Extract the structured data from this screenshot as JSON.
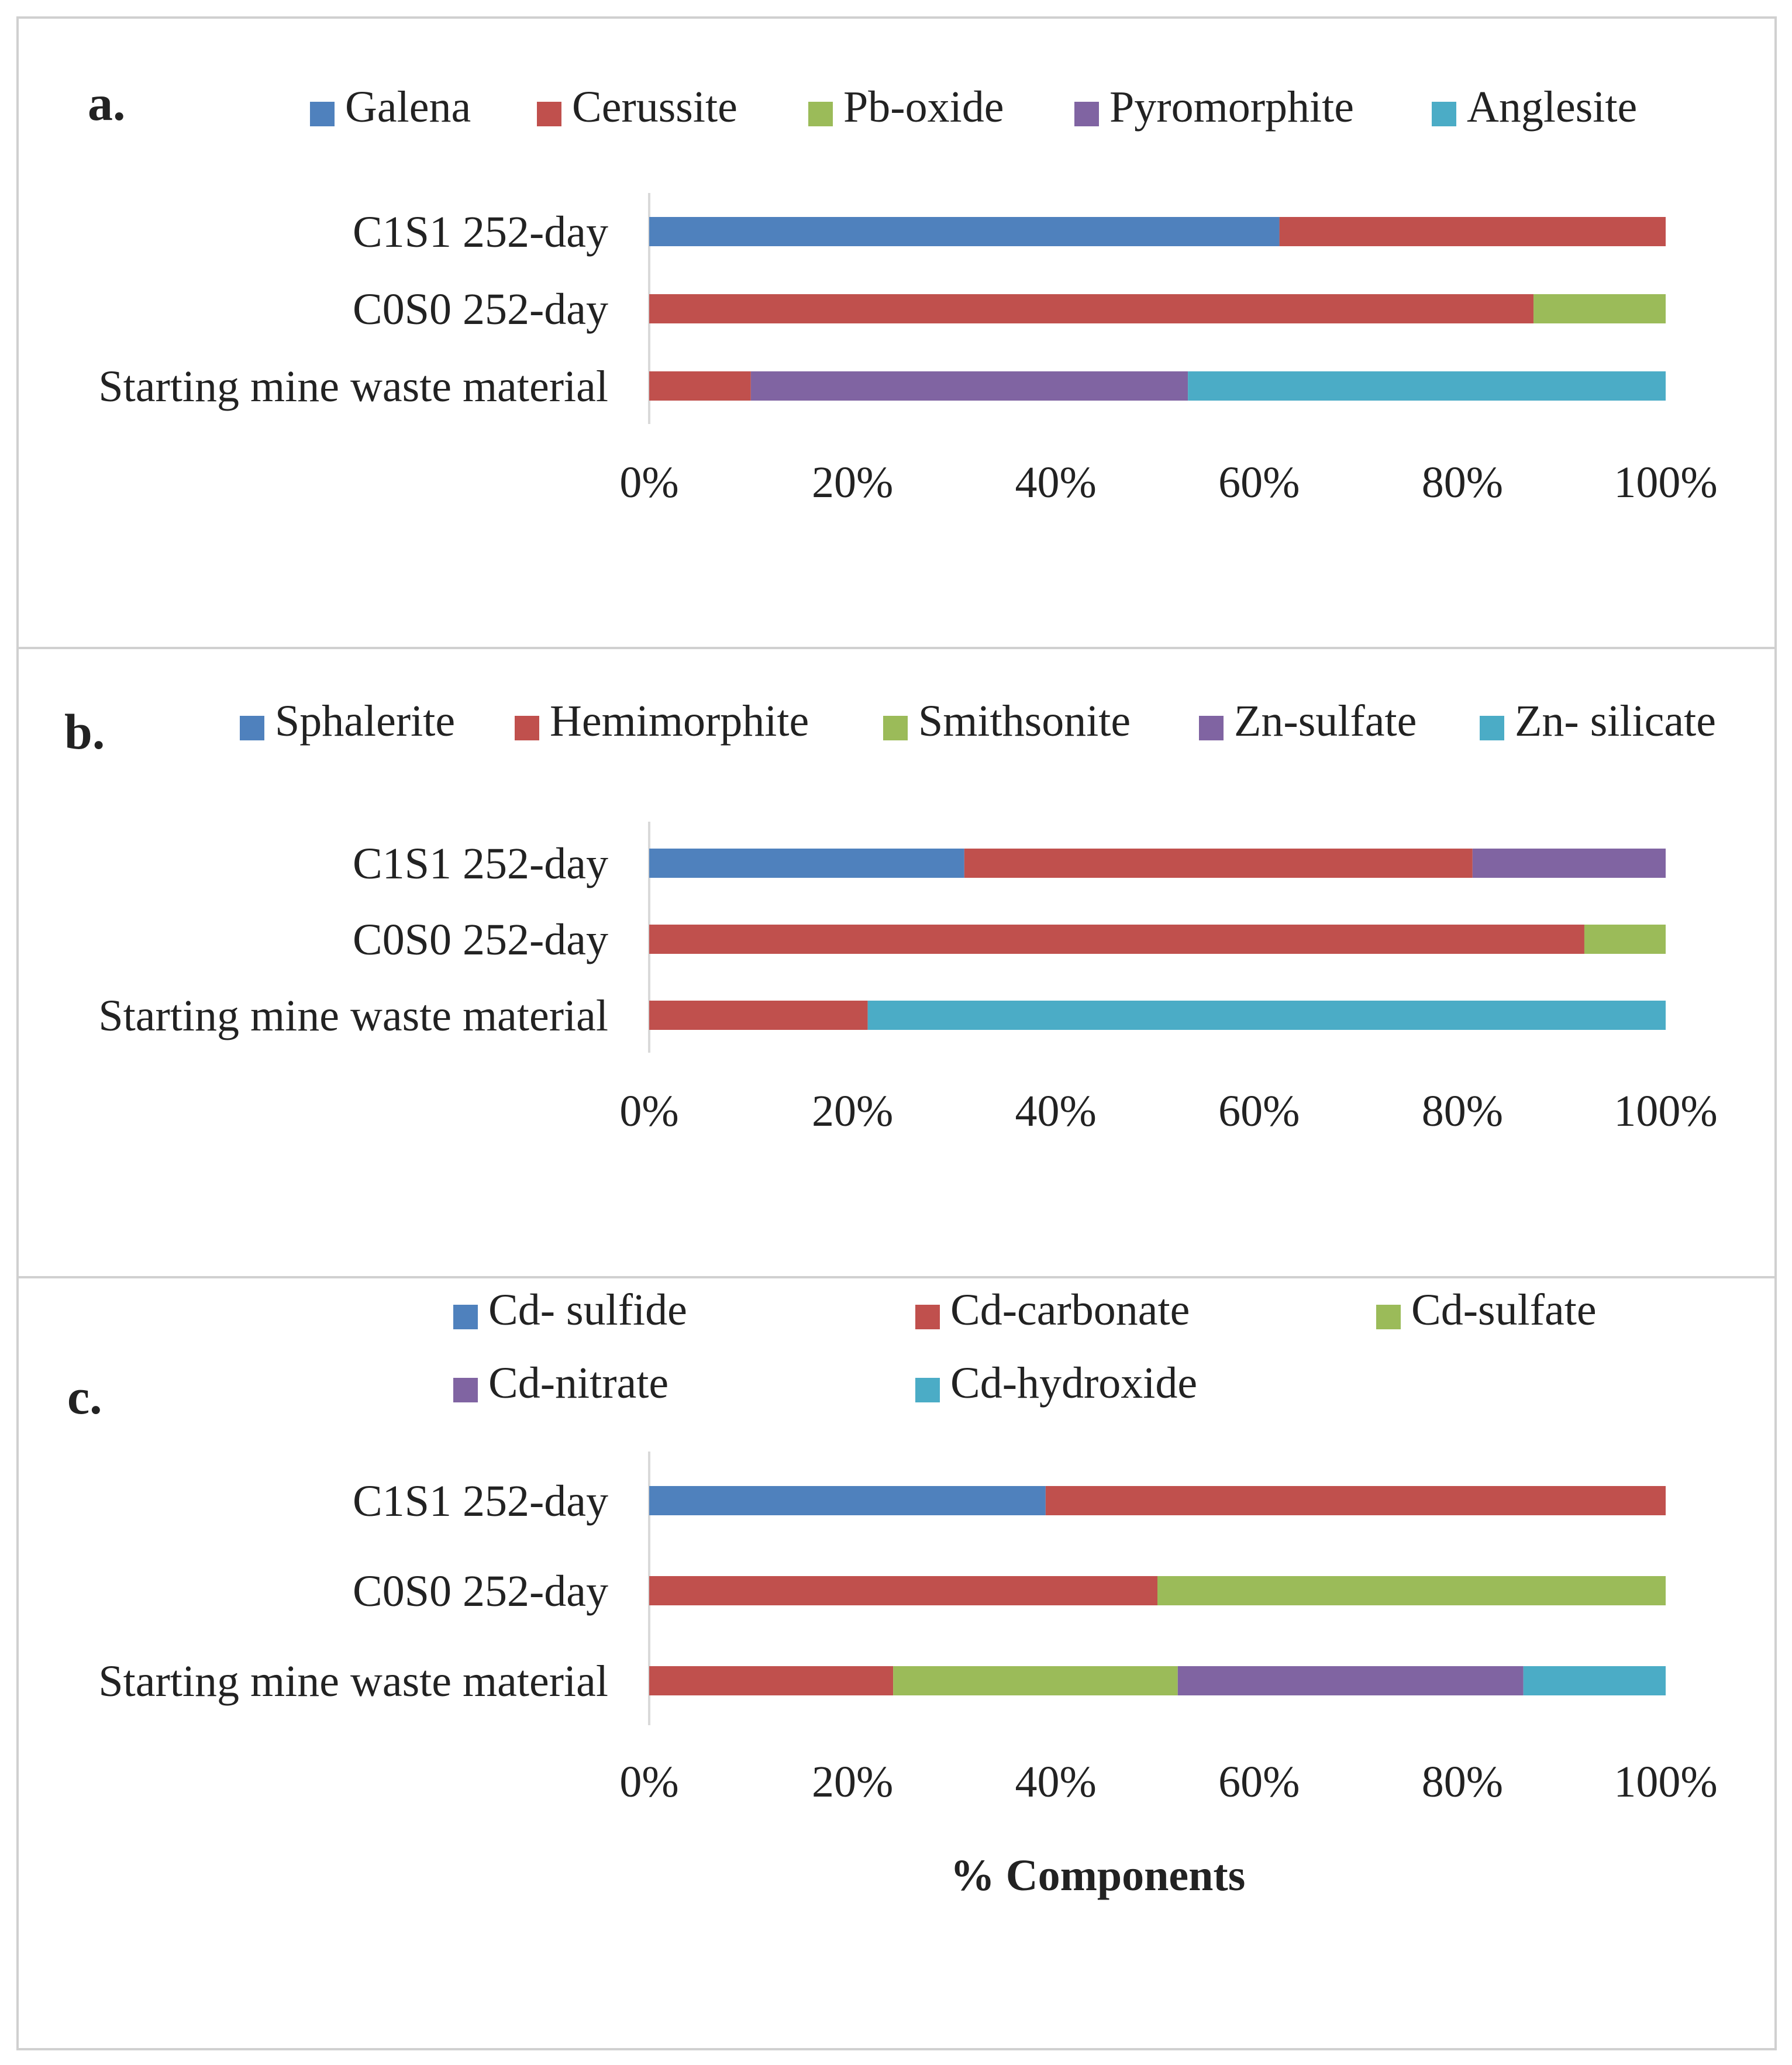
{
  "figure": {
    "xlabel": "% Components",
    "tick_labels": [
      "0%",
      "20%",
      "40%",
      "60%",
      "80%",
      "100%"
    ]
  },
  "chart_data": [
    {
      "type": "bar",
      "orientation": "horizontal",
      "stacked": "percent",
      "panel_label": "a.",
      "categories": [
        "C1S1 252-day",
        "C0S0 252-day",
        "Starting mine waste material"
      ],
      "xlim": [
        0,
        100
      ],
      "legend_position": "top",
      "series": [
        {
          "name": "Galena",
          "color": "#4f81bd",
          "values": [
            62,
            0,
            0
          ]
        },
        {
          "name": "Cerussite",
          "color": "#c0504d",
          "values": [
            38,
            87,
            10
          ]
        },
        {
          "name": "Pb-oxide",
          "color": "#9bbb59",
          "values": [
            0,
            13,
            0
          ]
        },
        {
          "name": "Pyromorphite",
          "color": "#8064a2",
          "values": [
            0,
            0,
            43
          ]
        },
        {
          "name": "Anglesite",
          "color": "#4bacc6",
          "values": [
            0,
            0,
            47
          ]
        }
      ]
    },
    {
      "type": "bar",
      "orientation": "horizontal",
      "stacked": "percent",
      "panel_label": "b.",
      "categories": [
        "C1S1 252-day",
        "C0S0 252-day",
        "Starting mine waste material"
      ],
      "xlim": [
        0,
        100
      ],
      "legend_position": "top",
      "series": [
        {
          "name": "Sphalerite",
          "color": "#4f81bd",
          "values": [
            31,
            0,
            0
          ]
        },
        {
          "name": "Hemimorphite",
          "color": "#c0504d",
          "values": [
            50,
            92,
            21.5
          ]
        },
        {
          "name": "Smithsonite",
          "color": "#9bbb59",
          "values": [
            0,
            8,
            0
          ]
        },
        {
          "name": "Zn-sulfate",
          "color": "#8064a2",
          "values": [
            19,
            0,
            0
          ]
        },
        {
          "name": "Zn- silicate",
          "color": "#4bacc6",
          "values": [
            0,
            0,
            78.5
          ]
        }
      ]
    },
    {
      "type": "bar",
      "orientation": "horizontal",
      "stacked": "percent",
      "panel_label": "c.",
      "categories": [
        "C1S1 252-day",
        "C0S0 252-day",
        "Starting mine waste material"
      ],
      "xlim": [
        0,
        100
      ],
      "xlabel": "% Components",
      "legend_position": "top",
      "series": [
        {
          "name": "Cd- sulfide",
          "color": "#4f81bd",
          "values": [
            39,
            0,
            0
          ]
        },
        {
          "name": "Cd-carbonate",
          "color": "#c0504d",
          "values": [
            61,
            50,
            24
          ]
        },
        {
          "name": "Cd-sulfate",
          "color": "#9bbb59",
          "values": [
            0,
            50,
            28
          ]
        },
        {
          "name": "Cd-nitrate",
          "color": "#8064a2",
          "values": [
            0,
            0,
            34
          ]
        },
        {
          "name": "Cd-hydroxide",
          "color": "#4bacc6",
          "values": [
            0,
            0,
            14
          ]
        }
      ]
    }
  ]
}
